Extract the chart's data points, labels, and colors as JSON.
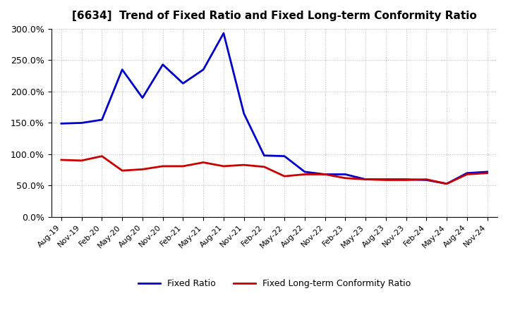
{
  "title": "[6634]  Trend of Fixed Ratio and Fixed Long-term Conformity Ratio",
  "x_labels": [
    "Aug-19",
    "Nov-19",
    "Feb-20",
    "May-20",
    "Aug-20",
    "Nov-20",
    "Feb-21",
    "May-21",
    "Aug-21",
    "Nov-21",
    "Feb-22",
    "May-22",
    "Aug-22",
    "Nov-22",
    "Feb-23",
    "May-23",
    "Aug-23",
    "Nov-23",
    "Feb-24",
    "May-24",
    "Aug-24",
    "Nov-24"
  ],
  "fixed_ratio": [
    149.0,
    150.0,
    155.0,
    235.0,
    190.0,
    243.0,
    213.0,
    235.0,
    293.0,
    165.0,
    98.0,
    97.0,
    72.0,
    68.0,
    68.0,
    60.0,
    60.0,
    60.0,
    59.0,
    53.0,
    70.0,
    72.0
  ],
  "fixed_lt_ratio": [
    91.0,
    90.0,
    97.0,
    74.0,
    76.0,
    81.0,
    81.0,
    87.0,
    81.0,
    83.0,
    80.0,
    65.0,
    68.0,
    68.0,
    62.0,
    60.0,
    59.0,
    59.0,
    60.0,
    53.0,
    68.0,
    70.0
  ],
  "fixed_ratio_color": "#0000cc",
  "fixed_lt_ratio_color": "#cc0000",
  "ylim": [
    0.0,
    300.0
  ],
  "yticks": [
    0.0,
    50.0,
    100.0,
    150.0,
    200.0,
    250.0,
    300.0
  ],
  "background_color": "#ffffff",
  "grid_color": "#bbbbbb",
  "legend_fixed": "Fixed Ratio",
  "legend_lt": "Fixed Long-term Conformity Ratio"
}
